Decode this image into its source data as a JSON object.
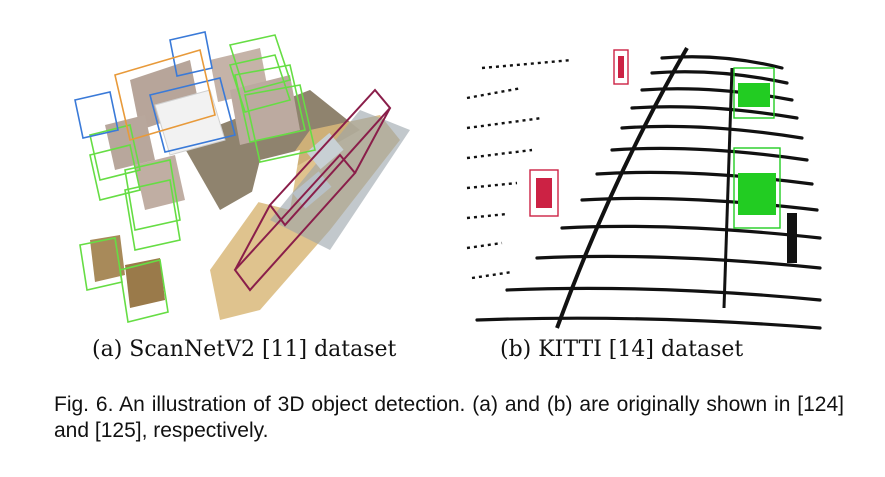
{
  "figure": {
    "panel_a": {
      "caption": "(a) ScanNetV2 [11] dataset",
      "box_colors": {
        "chair": "#66dd44",
        "table": "#3a7ad8",
        "sofa": "#e89a3a",
        "counter": "#8a1e4a"
      }
    },
    "panel_b": {
      "caption": "(b) KITTI [14] dataset",
      "box_colors": {
        "car": "#22cc22",
        "pedestrian": "#cc2244"
      }
    },
    "caption": "Fig. 6. An illustration of 3D object detection. (a) and (b) are originally shown in [124] and [125], respectively."
  }
}
